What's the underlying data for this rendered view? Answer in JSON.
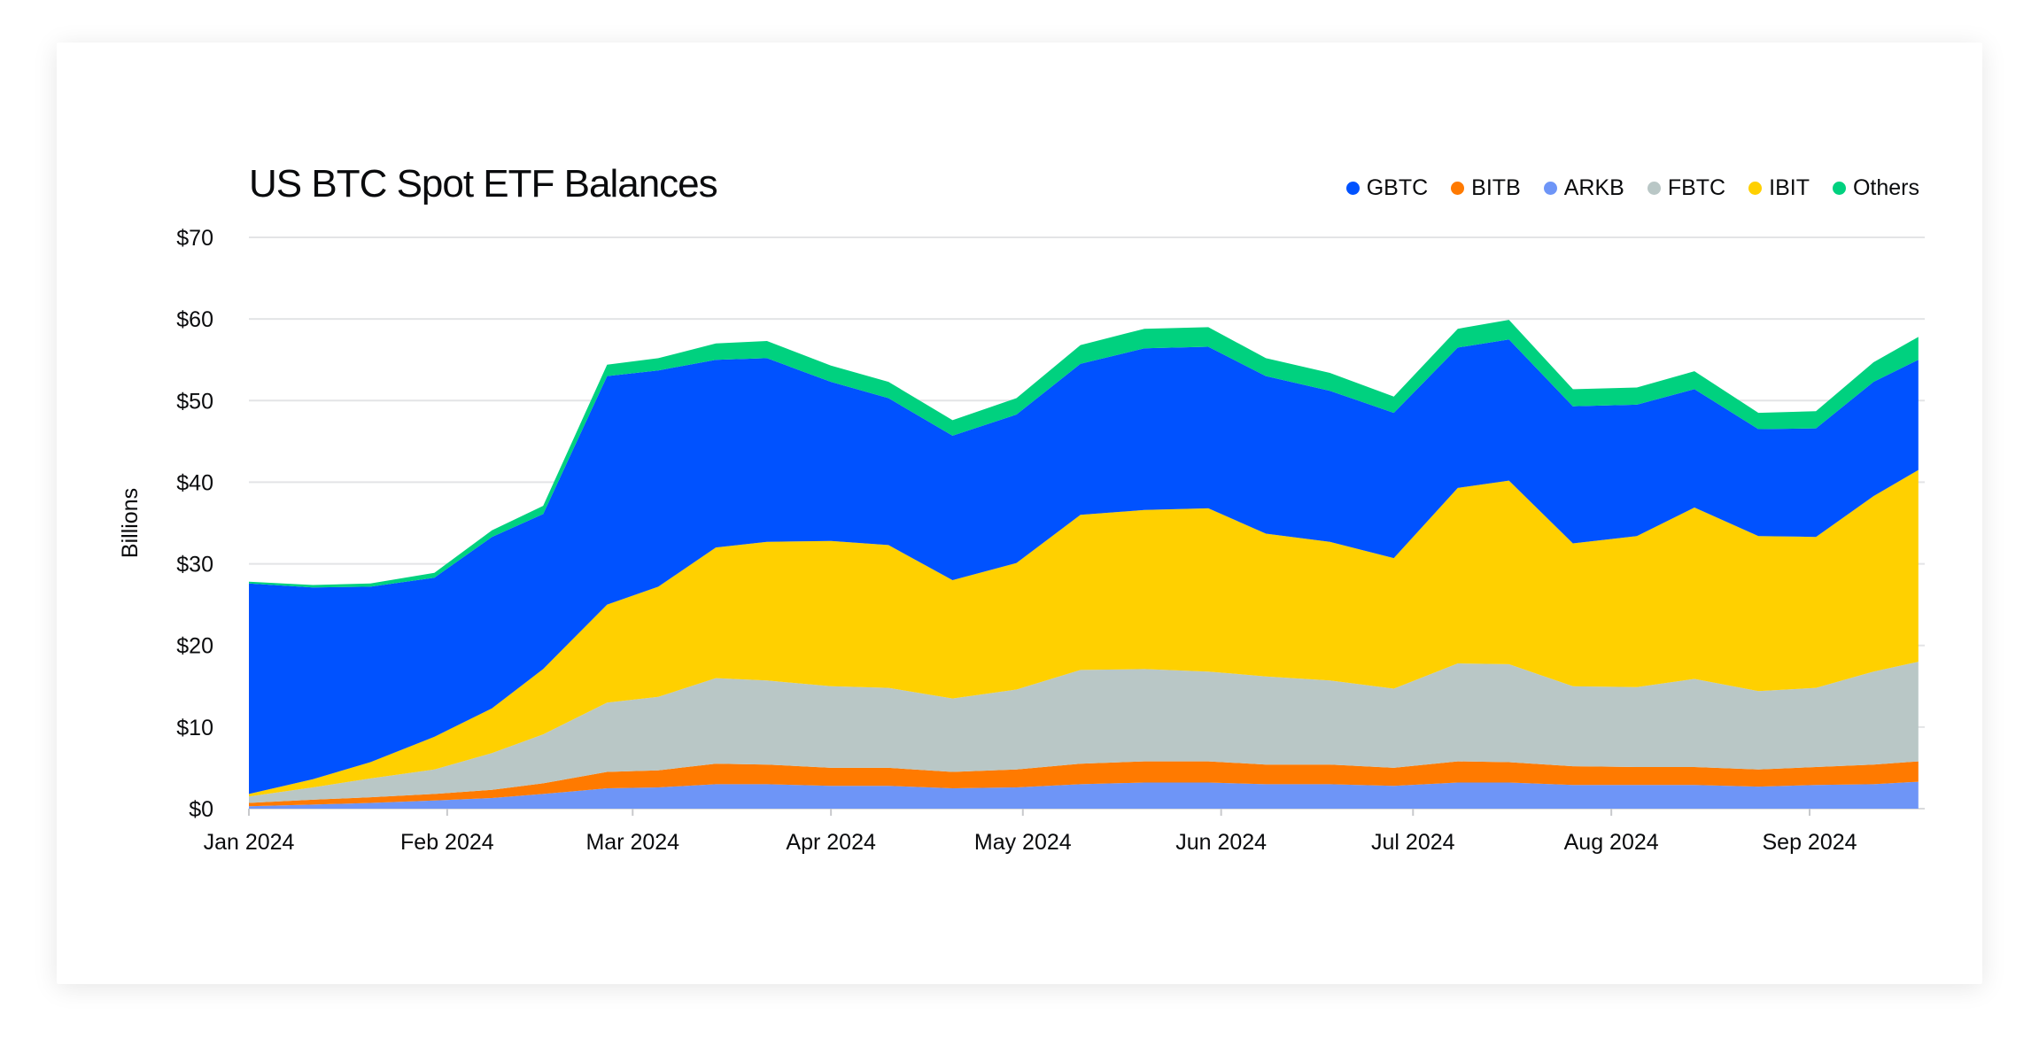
{
  "chart_data": {
    "type": "area",
    "stacked": true,
    "title": "US BTC Spot ETF Balances",
    "ylabel": "Billions",
    "xlabel": "",
    "ylim": [
      0,
      70
    ],
    "yticks": [
      0,
      10,
      20,
      30,
      40,
      50,
      60,
      70
    ],
    "ytick_labels": [
      "$0",
      "$10",
      "$20",
      "$30",
      "$40",
      "$50",
      "$60",
      "$70"
    ],
    "xtick_labels": [
      "Jan 2024",
      "Feb 2024",
      "Mar 2024",
      "Apr 2024",
      "May 2024",
      "Jun 2024",
      "Jul 2024",
      "Aug 2024",
      "Sep 2024"
    ],
    "xtick_dates": [
      "2024-01-01",
      "2024-02-01",
      "2024-03-01",
      "2024-04-01",
      "2024-05-01",
      "2024-06-01",
      "2024-07-01",
      "2024-08-01",
      "2024-09-01"
    ],
    "legend_position": "top-right",
    "grid": true,
    "x": [
      "2024-01-01",
      "2024-01-11",
      "2024-01-20",
      "2024-01-30",
      "2024-02-08",
      "2024-02-16",
      "2024-02-26",
      "2024-03-05",
      "2024-03-14",
      "2024-03-22",
      "2024-04-01",
      "2024-04-10",
      "2024-04-20",
      "2024-04-30",
      "2024-05-10",
      "2024-05-20",
      "2024-05-30",
      "2024-06-08",
      "2024-06-18",
      "2024-06-28",
      "2024-07-08",
      "2024-07-16",
      "2024-07-26",
      "2024-08-05",
      "2024-08-14",
      "2024-08-24",
      "2024-09-02",
      "2024-09-11",
      "2024-09-18"
    ],
    "series": [
      {
        "name": "ARKB",
        "color": "#6e95f7",
        "values": [
          0.3,
          0.5,
          0.7,
          1.0,
          1.3,
          1.8,
          2.5,
          2.6,
          3.0,
          3.0,
          2.8,
          2.8,
          2.5,
          2.6,
          3.0,
          3.2,
          3.2,
          3.0,
          3.0,
          2.8,
          3.2,
          3.2,
          2.9,
          2.9,
          2.9,
          2.7,
          2.9,
          3.0,
          3.3
        ]
      },
      {
        "name": "BITB",
        "color": "#ff7a00",
        "values": [
          0.4,
          0.6,
          0.7,
          0.8,
          1.0,
          1.3,
          2.0,
          2.1,
          2.5,
          2.4,
          2.2,
          2.2,
          2.0,
          2.2,
          2.5,
          2.6,
          2.6,
          2.4,
          2.4,
          2.2,
          2.6,
          2.5,
          2.3,
          2.2,
          2.2,
          2.1,
          2.2,
          2.4,
          2.5
        ]
      },
      {
        "name": "FBTC",
        "color": "#b9c7c6",
        "values": [
          0.8,
          1.5,
          2.3,
          3.0,
          4.5,
          6.0,
          8.5,
          9.0,
          10.5,
          10.3,
          10.0,
          9.8,
          9.0,
          9.8,
          11.5,
          11.3,
          11.0,
          10.8,
          10.3,
          9.7,
          12.0,
          12.0,
          9.8,
          9.8,
          10.8,
          9.6,
          9.7,
          11.4,
          12.2
        ]
      },
      {
        "name": "IBIT",
        "color": "#ffd000",
        "values": [
          0.3,
          1.0,
          2.0,
          4.0,
          5.5,
          8.0,
          12.0,
          13.5,
          16.0,
          17.0,
          17.8,
          17.5,
          14.5,
          15.5,
          19.0,
          19.5,
          20.0,
          17.5,
          17.0,
          16.0,
          21.5,
          22.5,
          17.5,
          18.5,
          21.0,
          19.0,
          18.5,
          21.5,
          23.5
        ]
      },
      {
        "name": "GBTC",
        "color": "#0052ff",
        "values": [
          25.8,
          23.5,
          21.5,
          19.5,
          21.0,
          19.0,
          28.0,
          26.5,
          23.0,
          22.5,
          19.5,
          18.0,
          17.7,
          18.2,
          18.5,
          19.8,
          19.8,
          19.3,
          18.5,
          17.8,
          17.2,
          17.3,
          16.8,
          16.1,
          14.5,
          13.1,
          13.3,
          14.0,
          13.5
        ]
      },
      {
        "name": "Others",
        "color": "#00d17f",
        "values": [
          0.2,
          0.3,
          0.4,
          0.6,
          0.8,
          1.0,
          1.4,
          1.5,
          2.0,
          2.1,
          2.0,
          2.0,
          1.9,
          2.0,
          2.3,
          2.4,
          2.4,
          2.2,
          2.2,
          2.0,
          2.3,
          2.4,
          2.1,
          2.1,
          2.2,
          2.0,
          2.1,
          2.4,
          2.8
        ]
      }
    ],
    "legend_order": [
      "GBTC",
      "BITB",
      "ARKB",
      "FBTC",
      "IBIT",
      "Others"
    ]
  }
}
